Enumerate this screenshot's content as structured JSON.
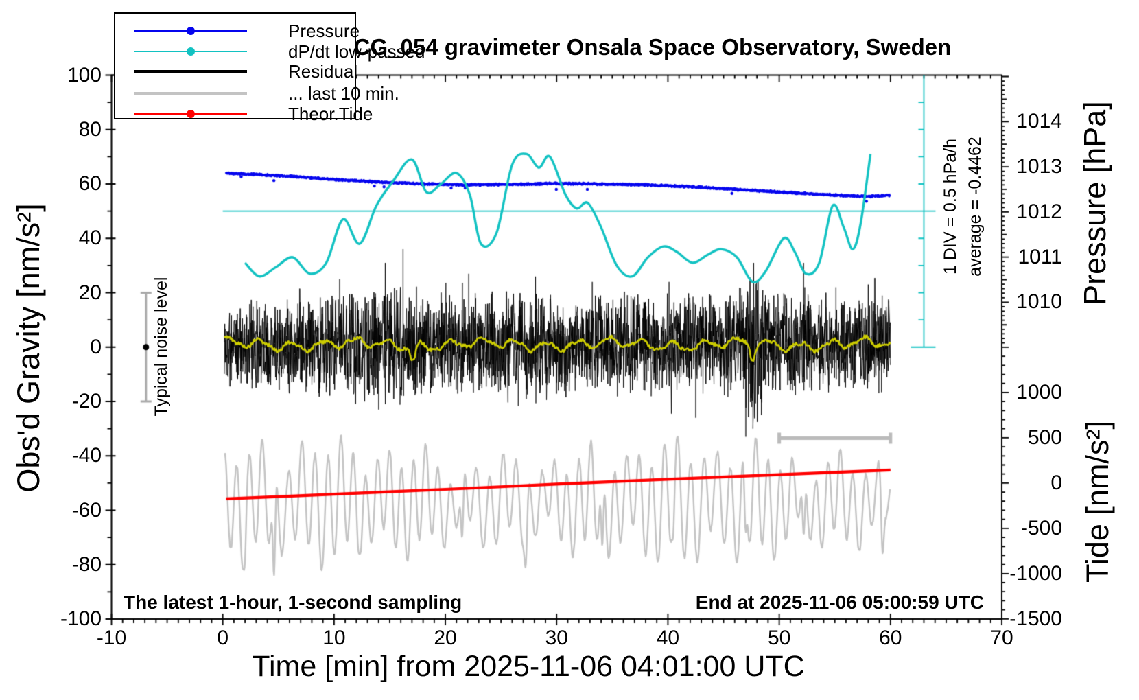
{
  "colors": {
    "pressure_blue": "#0505ee",
    "dpdt_cyan": "#12c2c2",
    "residual_black": "#000000",
    "last10_gray": "#c3c3c3",
    "tide_red": "#ff0000",
    "smooth_yellow": "#cdcd00",
    "noisebar_gray": "#aaaaaa",
    "scalebar_gray": "#bbbbbb"
  },
  "chart_data": {
    "type": "line",
    "title": "SCG_054 gravimeter Onsala Space Observatory, Sweden",
    "legend": {
      "position": "top-left",
      "entries": [
        {
          "label": "Pressure",
          "color": "#0505ee",
          "dot": true,
          "weight": 2
        },
        {
          "label": "dP/dt low-passed",
          "color": "#12c2c2",
          "dot": true,
          "weight": 2
        },
        {
          "label": "Residual",
          "color": "#000000",
          "dot": false,
          "weight": 4
        },
        {
          "label": "... last 10 min.",
          "color": "#c3c3c3",
          "dot": false,
          "weight": 4
        },
        {
          "label": "Theor.Tide",
          "color": "#ff0000",
          "dot": true,
          "weight": 2
        }
      ]
    },
    "axes": {
      "x": {
        "title": "Time [min] from 2025-11-06 04:01:00 UTC",
        "range": [
          -10,
          70
        ],
        "major_ticks": [
          -10,
          0,
          10,
          20,
          30,
          40,
          50,
          60,
          70
        ],
        "minor_step": 1
      },
      "gravity": {
        "title": "Obs'd Gravity [nm/s²]",
        "range": [
          -100,
          100
        ],
        "major_ticks": [
          100,
          80,
          60,
          40,
          20,
          0,
          -20,
          -40,
          -60,
          -80,
          -100
        ],
        "minor_step": 10
      },
      "pressure": {
        "title": "Pressure [hPa]",
        "major_ticks": [
          1014,
          1013,
          1012,
          1011,
          1010
        ],
        "minor_step": 0.1,
        "gravity_of_1012": 49.7,
        "gravity_per_hPa": 16.6,
        "tick_span_gravity": [
          0,
          100
        ]
      },
      "tide": {
        "title": "Tide [nm/s²]",
        "major_ticks": [
          1000,
          500,
          0,
          -500,
          -1000,
          -1500
        ],
        "minor_step": 100,
        "gravity_of_0": -50,
        "gravity_per_500": 16.65,
        "tick_span_gravity": [
          -100,
          0.2
        ]
      },
      "dpdt": {
        "label": "1 DIV = 0.5 hPa/h",
        "average_label": "average = -0.4462",
        "x_min": 63,
        "span_gravity": [
          0,
          100
        ],
        "tick_step_gravity": 10,
        "zero_gravity": 50
      }
    },
    "reference_line_gravity": 50,
    "noise_bar": {
      "label": "Typical noise level",
      "x_min": -6.9,
      "center_gravity": 0,
      "half_height_gravity": 20
    },
    "notes": {
      "left": "The latest 1-hour, 1-second sampling",
      "right": "End at 2025-11-06 05:00:59 UTC"
    },
    "series": {
      "pressure": {
        "unit": "hPa",
        "jitter": 1.6,
        "seed": 7,
        "points": [
          [
            0.3,
            1012.86
          ],
          [
            3,
            1012.83
          ],
          [
            6,
            1012.79
          ],
          [
            10,
            1012.72
          ],
          [
            14,
            1012.66
          ],
          [
            18,
            1012.62
          ],
          [
            22,
            1012.6
          ],
          [
            26,
            1012.61
          ],
          [
            30,
            1012.63
          ],
          [
            34,
            1012.62
          ],
          [
            38,
            1012.6
          ],
          [
            42,
            1012.56
          ],
          [
            46,
            1012.5
          ],
          [
            50,
            1012.44
          ],
          [
            53,
            1012.4
          ],
          [
            56,
            1012.36
          ],
          [
            58,
            1012.34
          ],
          [
            60,
            1012.37
          ]
        ]
      },
      "dpdt": {
        "unit": "plot-gravity-scale",
        "points": [
          [
            2,
            31
          ],
          [
            3.3,
            26
          ],
          [
            4.8,
            29.5
          ],
          [
            6.3,
            33
          ],
          [
            7.8,
            27
          ],
          [
            9.3,
            31
          ],
          [
            10.8,
            47
          ],
          [
            12.3,
            38
          ],
          [
            13.8,
            52
          ],
          [
            15.3,
            61
          ],
          [
            17,
            69
          ],
          [
            18.3,
            57
          ],
          [
            19.6,
            60
          ],
          [
            21,
            64
          ],
          [
            22.2,
            56
          ],
          [
            23.2,
            38
          ],
          [
            24.6,
            42
          ],
          [
            26,
            67
          ],
          [
            27.3,
            71
          ],
          [
            28.4,
            66
          ],
          [
            29.4,
            70
          ],
          [
            30.8,
            56
          ],
          [
            31.8,
            51
          ],
          [
            32.8,
            53
          ],
          [
            34,
            44
          ],
          [
            35.4,
            30
          ],
          [
            36.8,
            26
          ],
          [
            38.2,
            33
          ],
          [
            39.6,
            37
          ],
          [
            40.8,
            35
          ],
          [
            42.2,
            31
          ],
          [
            43.6,
            34
          ],
          [
            44.8,
            36
          ],
          [
            46.2,
            33
          ],
          [
            47.6,
            24
          ],
          [
            48.8,
            28
          ],
          [
            50.4,
            40
          ],
          [
            51.4,
            35
          ],
          [
            52.4,
            27
          ],
          [
            53.6,
            31
          ],
          [
            54.8,
            52
          ],
          [
            55.8,
            44
          ],
          [
            56.6,
            36
          ],
          [
            57.3,
            45
          ],
          [
            58.2,
            71
          ]
        ]
      },
      "residual": {
        "center": 1,
        "seed": 11,
        "envelope": [
          [
            0,
            11
          ],
          [
            5,
            12
          ],
          [
            9,
            13
          ],
          [
            13,
            15
          ],
          [
            16,
            15
          ],
          [
            19,
            13
          ],
          [
            23,
            13
          ],
          [
            27,
            15
          ],
          [
            31,
            14
          ],
          [
            35,
            13
          ],
          [
            39,
            13
          ],
          [
            43,
            13
          ],
          [
            46.5,
            14
          ],
          [
            47.6,
            21
          ],
          [
            49,
            14
          ],
          [
            53,
            13
          ],
          [
            60,
            12
          ]
        ],
        "spikes": [
          [
            10.5,
            25
          ],
          [
            14.6,
            31
          ],
          [
            16.2,
            36
          ],
          [
            22.1,
            27
          ],
          [
            28.1,
            26
          ],
          [
            33.2,
            24
          ],
          [
            40.1,
            24
          ],
          [
            42.5,
            -26
          ],
          [
            47.0,
            -33
          ],
          [
            47.7,
            31
          ],
          [
            48.4,
            -25
          ],
          [
            52.3,
            22
          ],
          [
            55.1,
            22
          ],
          [
            58,
            23
          ]
        ]
      },
      "residual_smooth": {
        "center": 1,
        "seed": 5,
        "dips": [
          [
            17.1,
            -4.5
          ],
          [
            47.6,
            -4
          ]
        ]
      },
      "last10": {
        "center": -57,
        "seed": 23,
        "period_min": 1.13,
        "dips": [
          [
            1.9,
            -82
          ],
          [
            4.6,
            -84
          ],
          [
            12.3,
            -76
          ],
          [
            21.5,
            -70
          ],
          [
            27.2,
            -81
          ],
          [
            34.1,
            -73
          ],
          [
            40.4,
            -71
          ],
          [
            47,
            -68
          ],
          [
            52.2,
            -69
          ],
          [
            59.3,
            -76
          ]
        ],
        "scale_bar": {
          "from_min": 50,
          "to_min": 60,
          "gravity": -33.5
        }
      },
      "theor_tide": {
        "unit": "plot-gravity-scale",
        "points": [
          [
            0.3,
            -55.8
          ],
          [
            10,
            -54.1
          ],
          [
            20,
            -52.3
          ],
          [
            30,
            -50.4
          ],
          [
            40,
            -48.6
          ],
          [
            50,
            -46.9
          ],
          [
            60,
            -45.2
          ]
        ]
      }
    }
  }
}
